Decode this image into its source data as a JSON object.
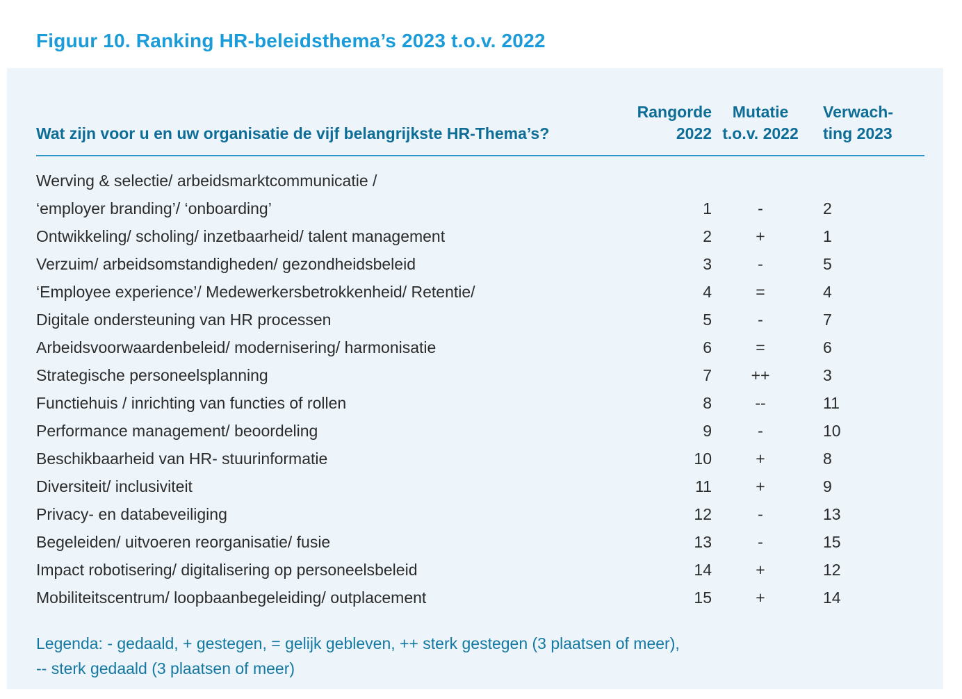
{
  "figure": {
    "title": "Figuur 10. Ranking HR-beleidsthema’s 2023 t.o.v. 2022"
  },
  "colors": {
    "title_accent": "#1B9CD8",
    "header_text": "#0E6D96",
    "body_text": "#2B2B2B",
    "panel_background": "#EDF5FB",
    "rule": "#2D97C8",
    "legend_text": "#1478A1",
    "page_background": "#FFFFFF"
  },
  "table": {
    "question": "Wat zijn voor u en uw organisatie de vijf belangrijkste HR-Thema’s?",
    "columns": [
      {
        "line1": "Rangorde",
        "line2": "2022"
      },
      {
        "line1": "Mutatie",
        "line2": "t.o.v. 2022"
      },
      {
        "line1": "Verwach-",
        "line2": "ting 2023"
      }
    ],
    "rows": [
      {
        "theme": "Werving & selectie/ arbeidsmarktcommunicatie /",
        "theme2": "‘employer branding’/ ‘onboarding’",
        "rangorde": "1",
        "mutatie": "-",
        "verwachting": "2"
      },
      {
        "theme": "Ontwikkeling/ scholing/ inzetbaarheid/ talent management",
        "rangorde": "2",
        "mutatie": "+",
        "verwachting": "1"
      },
      {
        "theme": "Verzuim/ arbeidsomstandigheden/ gezondheidsbeleid",
        "rangorde": "3",
        "mutatie": "-",
        "verwachting": "5"
      },
      {
        "theme": "‘Employee experience’/ Medewerkersbetrokkenheid/ Retentie/",
        "rangorde": "4",
        "mutatie": "=",
        "verwachting": "4"
      },
      {
        "theme": "Digitale ondersteuning van HR processen",
        "rangorde": "5",
        "mutatie": "-",
        "verwachting": "7"
      },
      {
        "theme": "Arbeidsvoorwaardenbeleid/ modernisering/ harmonisatie",
        "rangorde": "6",
        "mutatie": "=",
        "verwachting": "6"
      },
      {
        "theme": "Strategische personeelsplanning",
        "rangorde": "7",
        "mutatie": "++",
        "verwachting": "3"
      },
      {
        "theme": "Functiehuis / inrichting van functies of rollen",
        "rangorde": "8",
        "mutatie": "--",
        "verwachting": "11"
      },
      {
        "theme": "Performance management/ beoordeling",
        "rangorde": "9",
        "mutatie": "-",
        "verwachting": "10"
      },
      {
        "theme": "Beschikbaarheid van HR- stuurinformatie",
        "rangorde": "10",
        "mutatie": "+",
        "verwachting": "8"
      },
      {
        "theme": "Diversiteit/ inclusiviteit",
        "rangorde": "11",
        "mutatie": "+",
        "verwachting": "9"
      },
      {
        "theme": "Privacy- en databeveiliging",
        "rangorde": "12",
        "mutatie": "-",
        "verwachting": "13"
      },
      {
        "theme": "Begeleiden/ uitvoeren reorganisatie/ fusie",
        "rangorde": "13",
        "mutatie": "-",
        "verwachting": "15"
      },
      {
        "theme": "Impact robotisering/ digitalisering op personeelsbeleid",
        "rangorde": "14",
        "mutatie": "+",
        "verwachting": "12"
      },
      {
        "theme": "Mobiliteitscentrum/ loopbaanbegeleiding/ outplacement",
        "rangorde": "15",
        "mutatie": "+",
        "verwachting": "14"
      }
    ]
  },
  "legend": {
    "line1": "Legenda: - gedaald, + gestegen, = gelijk gebleven, ++ sterk gestegen (3 plaatsen of meer),",
    "line2": "-- sterk gedaald (3 plaatsen of meer)"
  }
}
